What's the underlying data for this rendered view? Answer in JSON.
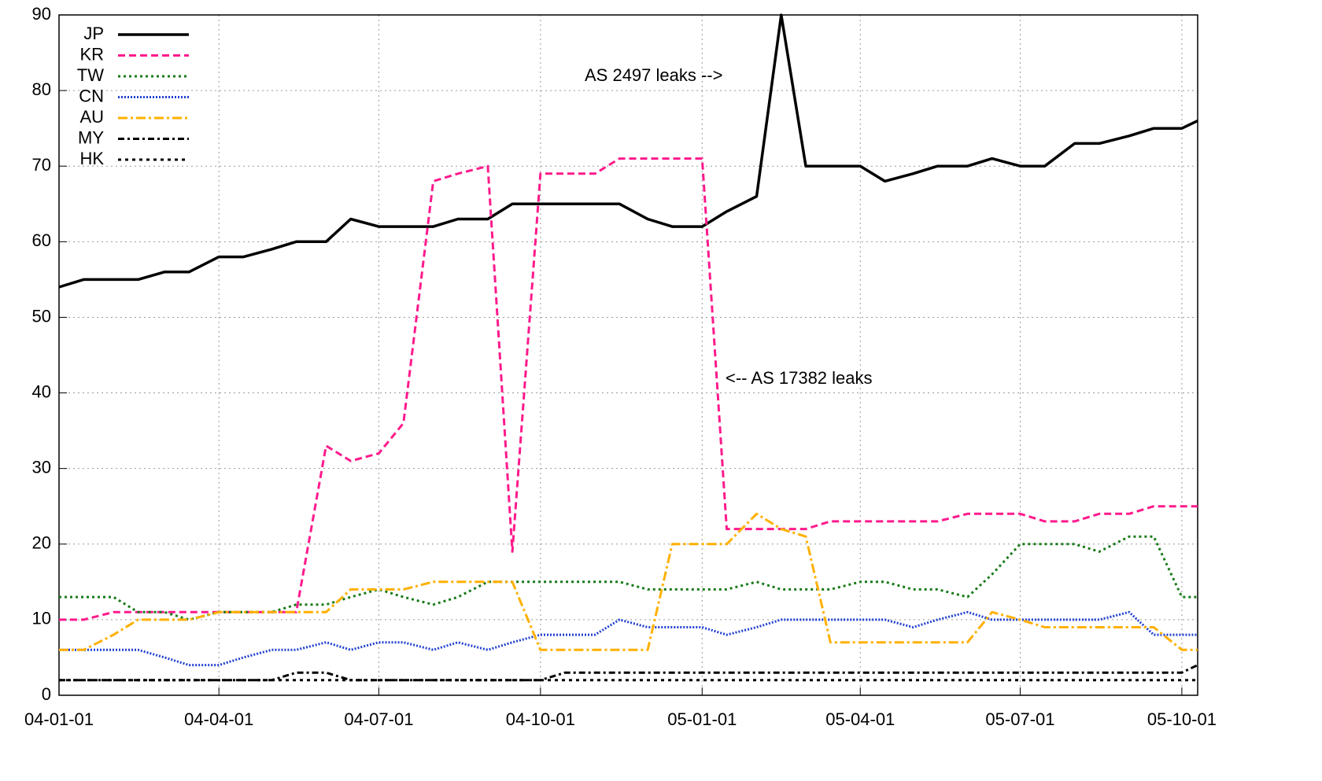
{
  "chart_data": {
    "type": "line",
    "annotations": [
      "AS 2497 leaks -->",
      "<-- AS 17382 leaks"
    ],
    "x": [
      "04-01-01",
      "04-01-15",
      "04-02-01",
      "04-02-15",
      "04-03-01",
      "04-03-15",
      "04-04-01",
      "04-04-15",
      "04-05-01",
      "04-05-15",
      "04-06-01",
      "04-06-15",
      "04-07-01",
      "04-07-15",
      "04-08-01",
      "04-08-15",
      "04-09-01",
      "04-09-15",
      "04-10-01",
      "04-10-15",
      "04-11-01",
      "04-11-15",
      "04-12-01",
      "04-12-15",
      "05-01-01",
      "05-01-15",
      "05-02-01",
      "05-02-15",
      "05-03-01",
      "05-03-15",
      "05-04-01",
      "05-04-15",
      "05-05-01",
      "05-05-15",
      "05-06-01",
      "05-06-15",
      "05-07-01",
      "05-07-15",
      "05-08-01",
      "05-08-15",
      "05-09-01",
      "05-09-15",
      "05-10-01",
      "05-10-10"
    ],
    "series": [
      {
        "name": "JP",
        "color": "#000000",
        "values": [
          54,
          55,
          55,
          55,
          56,
          56,
          58,
          58,
          59,
          60,
          60,
          63,
          62,
          62,
          62,
          63,
          63,
          65,
          65,
          65,
          65,
          65,
          63,
          62,
          62,
          64,
          66,
          90,
          70,
          70,
          70,
          68,
          69,
          70,
          70,
          71,
          70,
          70,
          73,
          73,
          74,
          75,
          75,
          76
        ]
      },
      {
        "name": "KR",
        "color": "#ff1a8c",
        "values": [
          10,
          10,
          11,
          11,
          11,
          11,
          11,
          11,
          11,
          11,
          33,
          31,
          32,
          36,
          68,
          69,
          70,
          19,
          69,
          69,
          69,
          71,
          71,
          71,
          71,
          22,
          22,
          22,
          22,
          23,
          23,
          23,
          23,
          23,
          24,
          24,
          24,
          23,
          23,
          24,
          24,
          25,
          25,
          25
        ]
      },
      {
        "name": "TW",
        "color": "#1a7a1a",
        "values": [
          13,
          13,
          13,
          11,
          11,
          10,
          11,
          11,
          11,
          12,
          12,
          13,
          14,
          13,
          12,
          13,
          15,
          15,
          15,
          15,
          15,
          15,
          14,
          14,
          14,
          14,
          15,
          14,
          14,
          14,
          15,
          15,
          14,
          14,
          13,
          16,
          20,
          20,
          20,
          19,
          21,
          21,
          13,
          13
        ]
      },
      {
        "name": "CN",
        "color": "#2040d0",
        "values": [
          6,
          6,
          6,
          6,
          5,
          4,
          4,
          5,
          6,
          6,
          7,
          6,
          7,
          7,
          6,
          7,
          6,
          7,
          8,
          8,
          8,
          10,
          9,
          9,
          9,
          8,
          9,
          10,
          10,
          10,
          10,
          10,
          9,
          10,
          11,
          10,
          10,
          10,
          10,
          10,
          11,
          8,
          8,
          8
        ]
      },
      {
        "name": "AU",
        "color": "#ffb000",
        "values": [
          6,
          6,
          8,
          10,
          10,
          10,
          11,
          11,
          11,
          11,
          11,
          14,
          14,
          14,
          15,
          15,
          15,
          15,
          6,
          6,
          6,
          6,
          6,
          20,
          20,
          20,
          24,
          22,
          21,
          7,
          7,
          7,
          7,
          7,
          7,
          11,
          10,
          9,
          9,
          9,
          9,
          9,
          6,
          6
        ]
      },
      {
        "name": "MY",
        "color": "#000000",
        "values": [
          2,
          2,
          2,
          2,
          2,
          2,
          2,
          2,
          2,
          3,
          3,
          2,
          2,
          2,
          2,
          2,
          2,
          2,
          2,
          3,
          3,
          3,
          3,
          3,
          3,
          3,
          3,
          3,
          3,
          3,
          3,
          3,
          3,
          3,
          3,
          3,
          3,
          3,
          3,
          3,
          3,
          3,
          3,
          4
        ]
      },
      {
        "name": "HK",
        "color": "#000000",
        "values": [
          2,
          2,
          2,
          2,
          2,
          2,
          2,
          2,
          2,
          2,
          2,
          2,
          2,
          2,
          2,
          2,
          2,
          2,
          2,
          2,
          2,
          2,
          2,
          2,
          2,
          2,
          2,
          2,
          2,
          2,
          2,
          2,
          2,
          2,
          2,
          2,
          2,
          2,
          2,
          2,
          2,
          2,
          2,
          2
        ]
      }
    ],
    "xlim": [
      "04-01-01",
      "05-10-10"
    ],
    "xticks": [
      "04-01-01",
      "04-04-01",
      "04-07-01",
      "04-10-01",
      "05-01-01",
      "05-04-01",
      "05-07-01",
      "05-10-01"
    ],
    "ylim": [
      0,
      90
    ],
    "yticks": [
      0,
      10,
      20,
      30,
      40,
      50,
      60,
      70,
      80,
      90
    ],
    "grid": true,
    "legend": "upper left"
  }
}
